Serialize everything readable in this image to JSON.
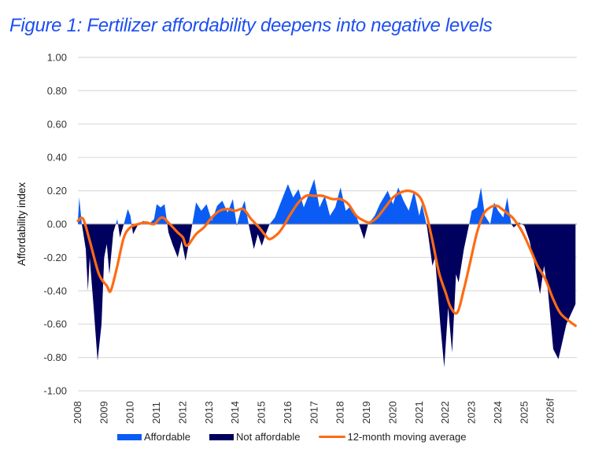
{
  "chart_data": {
    "type": "area",
    "title": "Figure 1: Fertilizer affordability deepens into negative levels",
    "xlabel": "",
    "ylabel": "Affordability index",
    "ylim": [
      -1.0,
      1.0
    ],
    "xlim": [
      2008.0,
      2027.0
    ],
    "y_ticks": [
      "1.00",
      "0.80",
      "0.60",
      "0.40",
      "0.20",
      "0.00",
      "-0.20",
      "-0.40",
      "-0.60",
      "-0.80",
      "-1.00"
    ],
    "y_tick_values": [
      1.0,
      0.8,
      0.6,
      0.4,
      0.2,
      0.0,
      -0.2,
      -0.4,
      -0.6,
      -0.8,
      -1.0
    ],
    "x_ticks": [
      "2008",
      "2009",
      "2010",
      "2011",
      "2012",
      "2013",
      "2014",
      "2015",
      "2016",
      "2017",
      "2018",
      "2019",
      "2020",
      "2021",
      "2022",
      "2023",
      "2024",
      "2025",
      "2026f"
    ],
    "grid": true,
    "legend_position": "bottom",
    "colors": {
      "affordable": "#0a5cf5",
      "not_affordable": "#00005e",
      "moving_average": "#ff6a13",
      "title": "#1d4ff2"
    },
    "series": [
      {
        "name": "Affordability index",
        "legend_positive": "Affordable",
        "legend_negative": "Not affordable",
        "points": [
          [
            2008.0,
            0.02
          ],
          [
            2008.05,
            0.16
          ],
          [
            2008.15,
            0.0
          ],
          [
            2008.3,
            -0.15
          ],
          [
            2008.38,
            -0.4
          ],
          [
            2008.45,
            -0.2
          ],
          [
            2008.6,
            -0.5
          ],
          [
            2008.75,
            -0.82
          ],
          [
            2008.9,
            -0.6
          ],
          [
            2009.0,
            -0.2
          ],
          [
            2009.1,
            -0.12
          ],
          [
            2009.2,
            -0.3
          ],
          [
            2009.35,
            -0.05
          ],
          [
            2009.5,
            0.03
          ],
          [
            2009.6,
            -0.08
          ],
          [
            2009.75,
            0.0
          ],
          [
            2009.9,
            0.09
          ],
          [
            2010.0,
            0.05
          ],
          [
            2010.1,
            -0.06
          ],
          [
            2010.3,
            0.0
          ],
          [
            2010.5,
            0.02
          ],
          [
            2010.7,
            0.0
          ],
          [
            2010.9,
            0.03
          ],
          [
            2011.0,
            0.12
          ],
          [
            2011.15,
            0.1
          ],
          [
            2011.3,
            0.12
          ],
          [
            2011.45,
            -0.05
          ],
          [
            2011.6,
            -0.12
          ],
          [
            2011.8,
            -0.2
          ],
          [
            2011.95,
            -0.1
          ],
          [
            2012.1,
            -0.22
          ],
          [
            2012.3,
            -0.05
          ],
          [
            2012.5,
            0.13
          ],
          [
            2012.7,
            0.08
          ],
          [
            2012.9,
            0.12
          ],
          [
            2013.1,
            0.02
          ],
          [
            2013.3,
            0.11
          ],
          [
            2013.5,
            0.14
          ],
          [
            2013.7,
            0.07
          ],
          [
            2013.9,
            0.15
          ],
          [
            2014.05,
            -0.01
          ],
          [
            2014.2,
            0.08
          ],
          [
            2014.35,
            0.14
          ],
          [
            2014.5,
            0.0
          ],
          [
            2014.7,
            -0.15
          ],
          [
            2014.85,
            -0.06
          ],
          [
            2015.0,
            -0.13
          ],
          [
            2015.15,
            -0.06
          ],
          [
            2015.3,
            0.0
          ],
          [
            2015.5,
            0.04
          ],
          [
            2015.7,
            0.12
          ],
          [
            2016.0,
            0.24
          ],
          [
            2016.2,
            0.16
          ],
          [
            2016.4,
            0.21
          ],
          [
            2016.6,
            0.1
          ],
          [
            2016.8,
            0.18
          ],
          [
            2017.0,
            0.27
          ],
          [
            2017.2,
            0.1
          ],
          [
            2017.4,
            0.17
          ],
          [
            2017.6,
            0.05
          ],
          [
            2017.8,
            0.1
          ],
          [
            2018.0,
            0.22
          ],
          [
            2018.2,
            0.08
          ],
          [
            2018.4,
            0.11
          ],
          [
            2018.6,
            0.05
          ],
          [
            2018.75,
            -0.02
          ],
          [
            2018.9,
            -0.09
          ],
          [
            2019.05,
            0.0
          ],
          [
            2019.3,
            0.05
          ],
          [
            2019.5,
            0.12
          ],
          [
            2019.8,
            0.2
          ],
          [
            2020.0,
            0.12
          ],
          [
            2020.2,
            0.22
          ],
          [
            2020.4,
            0.14
          ],
          [
            2020.6,
            0.08
          ],
          [
            2020.8,
            0.2
          ],
          [
            2021.0,
            0.05
          ],
          [
            2021.1,
            0.12
          ],
          [
            2021.3,
            -0.02
          ],
          [
            2021.5,
            -0.25
          ],
          [
            2021.6,
            -0.2
          ],
          [
            2021.8,
            -0.6
          ],
          [
            2021.95,
            -0.86
          ],
          [
            2022.1,
            -0.5
          ],
          [
            2022.25,
            -0.77
          ],
          [
            2022.4,
            -0.3
          ],
          [
            2022.5,
            -0.35
          ],
          [
            2022.7,
            -0.15
          ],
          [
            2022.9,
            0.0
          ],
          [
            2023.0,
            0.08
          ],
          [
            2023.2,
            0.1
          ],
          [
            2023.35,
            0.22
          ],
          [
            2023.5,
            0.05
          ],
          [
            2023.7,
            0.0
          ],
          [
            2023.85,
            0.13
          ],
          [
            2024.0,
            0.08
          ],
          [
            2024.2,
            0.04
          ],
          [
            2024.35,
            0.16
          ],
          [
            2024.5,
            0.0
          ],
          [
            2024.6,
            -0.02
          ],
          [
            2024.8,
            0.01
          ],
          [
            2025.0,
            -0.01
          ],
          [
            2025.2,
            -0.1
          ],
          [
            2025.4,
            -0.25
          ],
          [
            2025.6,
            -0.42
          ],
          [
            2025.75,
            -0.25
          ],
          [
            2025.9,
            -0.4
          ],
          [
            2026.1,
            -0.75
          ],
          [
            2026.3,
            -0.81
          ],
          [
            2026.6,
            -0.6
          ],
          [
            2026.95,
            -0.48
          ]
        ]
      },
      {
        "name": "12-month moving average",
        "points": [
          [
            2008.0,
            0.02
          ],
          [
            2008.2,
            0.03
          ],
          [
            2008.45,
            -0.1
          ],
          [
            2008.8,
            -0.3
          ],
          [
            2009.1,
            -0.37
          ],
          [
            2009.25,
            -0.4
          ],
          [
            2009.5,
            -0.25
          ],
          [
            2009.75,
            -0.08
          ],
          [
            2010.0,
            -0.02
          ],
          [
            2010.3,
            0.0
          ],
          [
            2010.6,
            0.01
          ],
          [
            2010.9,
            0.0
          ],
          [
            2011.2,
            0.04
          ],
          [
            2011.5,
            0.0
          ],
          [
            2011.8,
            -0.05
          ],
          [
            2012.0,
            -0.08
          ],
          [
            2012.15,
            -0.13
          ],
          [
            2012.5,
            -0.06
          ],
          [
            2012.8,
            -0.02
          ],
          [
            2013.1,
            0.04
          ],
          [
            2013.4,
            0.08
          ],
          [
            2013.7,
            0.09
          ],
          [
            2014.0,
            0.08
          ],
          [
            2014.3,
            0.09
          ],
          [
            2014.6,
            0.03
          ],
          [
            2014.9,
            -0.02
          ],
          [
            2015.1,
            -0.06
          ],
          [
            2015.3,
            -0.09
          ],
          [
            2015.6,
            -0.06
          ],
          [
            2015.8,
            -0.02
          ],
          [
            2016.1,
            0.06
          ],
          [
            2016.4,
            0.13
          ],
          [
            2016.7,
            0.17
          ],
          [
            2017.0,
            0.17
          ],
          [
            2017.3,
            0.17
          ],
          [
            2017.7,
            0.15
          ],
          [
            2018.0,
            0.15
          ],
          [
            2018.3,
            0.12
          ],
          [
            2018.6,
            0.05
          ],
          [
            2018.9,
            0.02
          ],
          [
            2019.1,
            0.01
          ],
          [
            2019.4,
            0.04
          ],
          [
            2019.7,
            0.1
          ],
          [
            2020.0,
            0.16
          ],
          [
            2020.3,
            0.19
          ],
          [
            2020.6,
            0.2
          ],
          [
            2020.9,
            0.18
          ],
          [
            2021.1,
            0.14
          ],
          [
            2021.3,
            0.04
          ],
          [
            2021.5,
            -0.1
          ],
          [
            2021.75,
            -0.29
          ],
          [
            2022.0,
            -0.41
          ],
          [
            2022.2,
            -0.5
          ],
          [
            2022.45,
            -0.53
          ],
          [
            2022.7,
            -0.39
          ],
          [
            2022.95,
            -0.22
          ],
          [
            2023.2,
            -0.05
          ],
          [
            2023.45,
            0.06
          ],
          [
            2023.7,
            0.1
          ],
          [
            2023.95,
            0.11
          ],
          [
            2024.15,
            0.09
          ],
          [
            2024.4,
            0.06
          ],
          [
            2024.6,
            0.03
          ],
          [
            2024.9,
            -0.04
          ],
          [
            2025.2,
            -0.14
          ],
          [
            2025.5,
            -0.25
          ],
          [
            2025.8,
            -0.33
          ],
          [
            2026.1,
            -0.45
          ],
          [
            2026.4,
            -0.54
          ],
          [
            2026.95,
            -0.61
          ]
        ]
      }
    ],
    "legend": [
      "Affordable",
      "Not affordable",
      "12-month moving average"
    ]
  }
}
